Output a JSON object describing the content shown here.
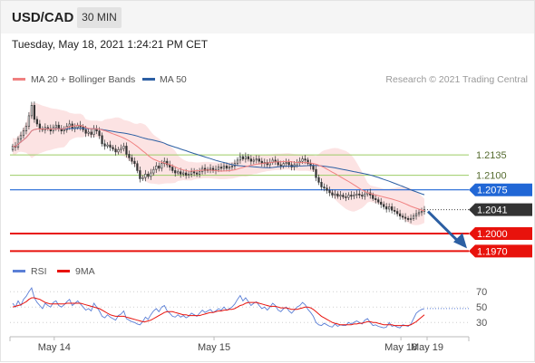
{
  "header": {
    "symbol": "USD/CAD",
    "timeframe": "30 MIN"
  },
  "datetime": "Tuesday, May 18, 2021 1:24:21 PM CET",
  "chart_data": {
    "type": "candlestick",
    "legend": [
      {
        "label": "MA 20 + Bollinger Bands",
        "color": "#f08080"
      },
      {
        "label": "MA 50",
        "color": "#2c5fa3"
      }
    ],
    "attribution": "Research © 2021 Trading Central",
    "ylim": [
      1.1955,
      1.225
    ],
    "levels": [
      {
        "value": 1.2135,
        "label": "1.2135",
        "color": "#9ccc65",
        "style": "support-resistance"
      },
      {
        "value": 1.21,
        "label": "1.2100",
        "color": "#9ccc65",
        "style": "support-resistance"
      },
      {
        "value": 1.2075,
        "label": "1.2075",
        "color": "#2167d6",
        "style": "pivot"
      },
      {
        "value": 1.2041,
        "label": "1.2041",
        "color": "#333333",
        "style": "last-price"
      },
      {
        "value": 1.2,
        "label": "1.2000",
        "color": "#e8120c",
        "style": "target"
      },
      {
        "value": 1.197,
        "label": "1.1970",
        "color": "#e8120c",
        "style": "target"
      }
    ],
    "close": [
      1.215,
      1.2148,
      1.2162,
      1.2168,
      1.2176,
      1.2184,
      1.2202,
      1.222,
      1.2196,
      1.2188,
      1.218,
      1.2178,
      1.2182,
      1.218,
      1.2176,
      1.2182,
      1.2186,
      1.218,
      1.2176,
      1.2178,
      1.2184,
      1.2188,
      1.218,
      1.2182,
      1.2186,
      1.2183,
      1.2178,
      1.2172,
      1.2174,
      1.217,
      1.218,
      1.2176,
      1.2168,
      1.2154,
      1.215,
      1.2152,
      1.2148,
      1.2145,
      1.214,
      1.2144,
      1.2146,
      1.215,
      1.2136,
      1.213,
      1.2124,
      1.212,
      1.2108,
      1.2094,
      1.2096,
      1.2102,
      1.2098,
      1.2104,
      1.211,
      1.2116,
      1.2112,
      1.212,
      1.2124,
      1.2118,
      1.2114,
      1.2108,
      1.2104,
      1.2106,
      1.2102,
      1.2104,
      1.21,
      1.2102,
      1.2106,
      1.2104,
      1.2102,
      1.2106,
      1.2112,
      1.2108,
      1.211,
      1.2112,
      1.2108,
      1.211,
      1.2114,
      1.2112,
      1.2116,
      1.2112,
      1.2114,
      1.2116,
      1.212,
      1.2126,
      1.2132,
      1.2128,
      1.2132,
      1.2128,
      1.2124,
      1.2126,
      1.2128,
      1.2124,
      1.212,
      1.2122,
      1.2118,
      1.2122,
      1.2126,
      1.2124,
      1.2118,
      1.2116,
      1.212,
      1.2122,
      1.2118,
      1.2114,
      1.2118,
      1.2122,
      1.2124,
      1.2128,
      1.2126,
      1.212,
      1.2116,
      1.211,
      1.2096,
      1.2088,
      1.208,
      1.2078,
      1.2074,
      1.207,
      1.2066,
      1.2068,
      1.2064,
      1.2066,
      1.2063,
      1.2062,
      1.2066,
      1.2064,
      1.2066,
      1.2068,
      1.2066,
      1.2064,
      1.2068,
      1.207,
      1.2066,
      1.206,
      1.2058,
      1.2054,
      1.205,
      1.2046,
      1.2042,
      1.2046,
      1.204,
      1.2038,
      1.2034,
      1.203,
      1.2028,
      1.2026,
      1.2024,
      1.2026,
      1.203,
      1.2034,
      1.2036,
      1.2038,
      1.2041
    ],
    "rsi": {
      "label": "RSI",
      "color": "#5b7fd6",
      "ma_label": "9MA",
      "ma_color": "#e8120c",
      "levels": [
        70,
        50,
        30
      ],
      "ylim": [
        15,
        82
      ],
      "values": [
        55,
        50,
        58,
        52,
        60,
        64,
        70,
        75,
        62,
        56,
        52,
        48,
        55,
        52,
        50,
        56,
        58,
        52,
        50,
        53,
        57,
        60,
        52,
        55,
        58,
        54,
        50,
        46,
        48,
        45,
        55,
        50,
        45,
        38,
        36,
        40,
        37,
        35,
        33,
        39,
        41,
        45,
        35,
        33,
        31,
        30,
        28,
        27,
        31,
        37,
        34,
        40,
        45,
        48,
        44,
        50,
        52,
        45,
        42,
        38,
        37,
        40,
        37,
        39,
        36,
        38,
        42,
        40,
        38,
        42,
        46,
        43,
        45,
        47,
        43,
        45,
        48,
        46,
        50,
        46,
        48,
        50,
        54,
        60,
        65,
        58,
        62,
        57,
        52,
        55,
        57,
        52,
        48,
        50,
        46,
        50,
        55,
        52,
        46,
        44,
        48,
        50,
        45,
        42,
        46,
        50,
        52,
        56,
        53,
        47,
        43,
        38,
        30,
        27,
        26,
        29,
        27,
        25,
        24,
        28,
        25,
        27,
        26,
        26,
        30,
        28,
        30,
        32,
        30,
        28,
        33,
        35,
        30,
        26,
        27,
        25,
        24,
        23,
        24,
        30,
        25,
        26,
        24,
        23,
        27,
        26,
        25,
        28,
        35,
        42,
        45,
        47,
        48
      ],
      "ma": [
        50,
        51,
        52,
        53,
        55,
        57,
        60,
        62,
        62,
        61,
        60,
        58,
        56,
        55,
        54,
        54,
        54,
        54,
        54,
        54,
        55,
        55,
        55,
        55,
        55,
        55,
        54,
        53,
        52,
        51,
        50,
        49,
        48,
        46,
        44,
        42,
        40,
        39,
        38,
        38,
        38,
        38,
        37,
        36,
        35,
        34,
        33,
        32,
        31,
        31,
        32,
        33,
        35,
        37,
        39,
        41,
        43,
        44,
        44,
        44,
        43,
        42,
        41,
        40,
        40,
        39,
        39,
        39,
        39,
        39,
        40,
        41,
        42,
        43,
        43,
        44,
        45,
        45,
        46,
        46,
        47,
        47,
        48,
        50,
        52,
        53,
        55,
        56,
        56,
        56,
        56,
        55,
        54,
        53,
        52,
        51,
        51,
        51,
        50,
        49,
        49,
        49,
        48,
        47,
        47,
        47,
        48,
        49,
        50,
        50,
        49,
        47,
        44,
        41,
        38,
        36,
        34,
        32,
        30,
        29,
        28,
        27,
        27,
        27,
        27,
        27,
        28,
        28,
        29,
        29,
        30,
        31,
        31,
        30,
        30,
        29,
        28,
        27,
        27,
        27,
        27,
        26,
        26,
        26,
        26,
        26,
        26,
        27,
        29,
        31,
        34,
        37,
        40
      ]
    },
    "x_tick_labels": [
      "May 14",
      "May 15",
      "May 18",
      "May 19"
    ]
  }
}
